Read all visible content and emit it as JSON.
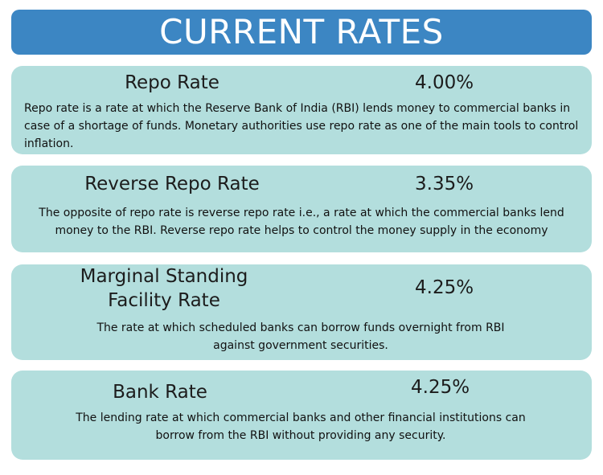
{
  "header": {
    "title": "CURRENT RATES"
  },
  "cards": [
    {
      "title": "Repo Rate",
      "value": "4.00%",
      "description": "Repo rate is a rate at which the Reserve Bank of India (RBI) lends money to commercial banks in case of a shortage of funds. Monetary authorities use repo rate as one of the main tools to control inflation."
    },
    {
      "title": "Reverse Repo Rate",
      "value": "3.35%",
      "description": "The opposite of repo rate is reverse repo rate i.e., a rate at which the commercial banks lend money to the RBI. Reverse repo rate helps to control the money supply in the economy"
    },
    {
      "title": "Marginal Standing Facility Rate",
      "value": "4.25%",
      "description": "The rate at which scheduled banks can borrow funds overnight from RBI against government securities."
    },
    {
      "title": "Bank Rate",
      "value": "4.25%",
      "description": "The lending rate at which commercial banks and other financial institutions can borrow from the RBI without providing any security."
    }
  ],
  "colors": {
    "header_background": "#3c86c3",
    "card_background": "#b3dedd",
    "header_text": "#ffffff"
  }
}
